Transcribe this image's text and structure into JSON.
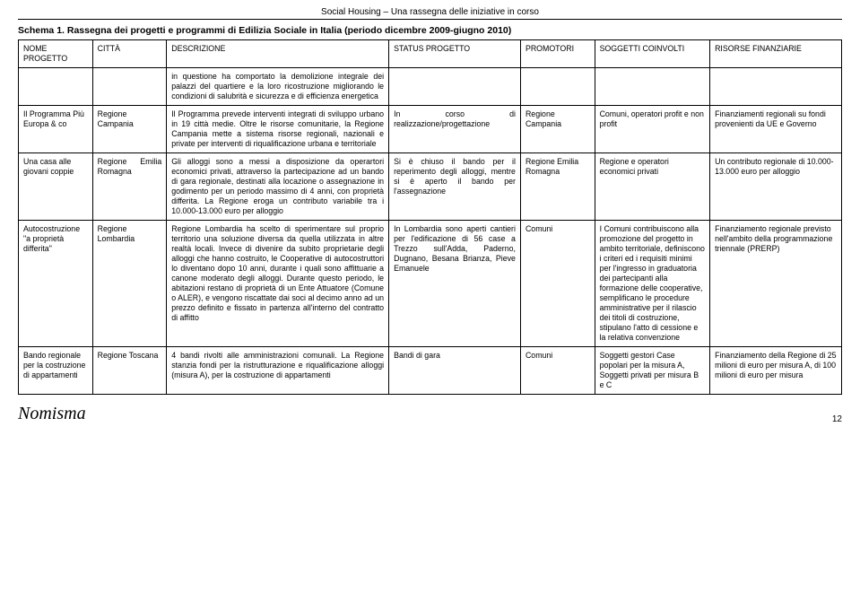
{
  "header": {
    "breadcrumb": "Social Housing – Una rassegna delle iniziative in corso",
    "schema_title": "Schema 1. Rassegna dei progetti e programmi di Edilizia Sociale in Italia (periodo dicembre 2009-giugno 2010)"
  },
  "table": {
    "columns": {
      "nome": "NOME PROGETTO",
      "citta": "CITTÀ",
      "desc": "DESCRIZIONE",
      "status": "STATUS PROGETTO",
      "prom": "PROMOTORI",
      "sogg": "SOGGETTI COINVOLTI",
      "fin": "RISORSE FINANZIARIE"
    },
    "rows": [
      {
        "nome": "",
        "citta": "",
        "desc": "in questione ha comportato la demolizione integrale dei palazzi del quartiere e la loro ricostruzione migliorando le condizioni di salubrità e sicurezza e di efficienza energetica",
        "status": "",
        "prom": "",
        "sogg": "",
        "fin": ""
      },
      {
        "nome": "Il Programma Più Europa & co",
        "citta": "Regione Campania",
        "desc": "Il Programma prevede interventi integrati di sviluppo urbano in 19 città medie. Oltre le risorse comunitarie, la Regione Campania mette a sistema risorse regionali, nazionali e private per interventi di riqualificazione urbana e territoriale",
        "status": "In corso di realizzazione/progettazione",
        "prom": "Regione Campania",
        "sogg": "Comuni, operatori profit e non profit",
        "fin": "Finanziamenti regionali su fondi provenienti da UE e Governo"
      },
      {
        "nome": "Una casa alle giovani coppie",
        "citta": "Regione Emilia Romagna",
        "desc": "Gli alloggi sono a messi a disposizione da operartori economici privati, attraverso la partecipazione ad un bando di gara regionale, destinati alla locazione o assegnazione in godimento per un periodo massimo di 4 anni, con proprietà differita. La Regione eroga un contributo variabile tra i 10.000-13.000 euro per alloggio",
        "status": "Si è chiuso il bando per il reperimento degli alloggi, mentre si è aperto il bando per l'assegnazione",
        "prom": "Regione Emilia Romagna",
        "sogg": "Regione e operatori economici privati",
        "fin": "Un contributo regionale di 10.000-13.000 euro per alloggio"
      },
      {
        "nome": "Autocostruzione \"a proprietà differita\"",
        "citta": "Regione Lombardia",
        "desc": "Regione Lombardia ha scelto di sperimentare sul proprio territorio una soluzione diversa da quella utilizzata in altre realtà locali. Invece di divenire da subito proprietarie degli alloggi che hanno costruito, le Cooperative di autocostruttori lo diventano dopo 10 anni, durante i quali sono affittuarie a canone moderato degli alloggi. Durante questo periodo, le abitazioni restano di proprietà di un Ente Attuatore (Comune o ALER), e vengono riscattate dai soci al decimo anno ad un prezzo definito e fissato in partenza all'interno del contratto di affitto",
        "status": "In Lombardia sono aperti cantieri per l'edificazione di 56 case a Trezzo sull'Adda, Paderno, Dugnano, Besana Brianza, Pieve Emanuele",
        "prom": "Comuni",
        "sogg": "I Comuni contribuiscono alla promozione del progetto in ambito territoriale, definiscono i criteri ed i requisiti minimi per l'ingresso in graduatoria dei partecipanti alla formazione delle cooperative, semplificano le procedure amministrative per il rilascio dei titoli di costruzione, stipulano l'atto di cessione e la relativa convenzione",
        "fin": "Finanziamento regionale previsto nell'ambito della programmazione triennale (PRERP)"
      },
      {
        "nome": "Bando regionale per la costruzione di appartamenti",
        "citta": "Regione Toscana",
        "desc": "4 bandi rivolti alle amministrazioni comunali. La Regione stanzia fondi per la ristrutturazione e riqualificazione alloggi (misura A), per la costruzione di appartamenti",
        "status": "Bandi di gara",
        "prom": "Comuni",
        "sogg": "Soggetti gestori Case popolari per la misura A, Soggetti privati per misura B e C",
        "fin": "Finanziamento della Regione di 25 milioni di euro per misura A, di 100 milioni di euro per misura"
      }
    ]
  },
  "footer": {
    "logo": "Nomisma",
    "page": "12"
  }
}
